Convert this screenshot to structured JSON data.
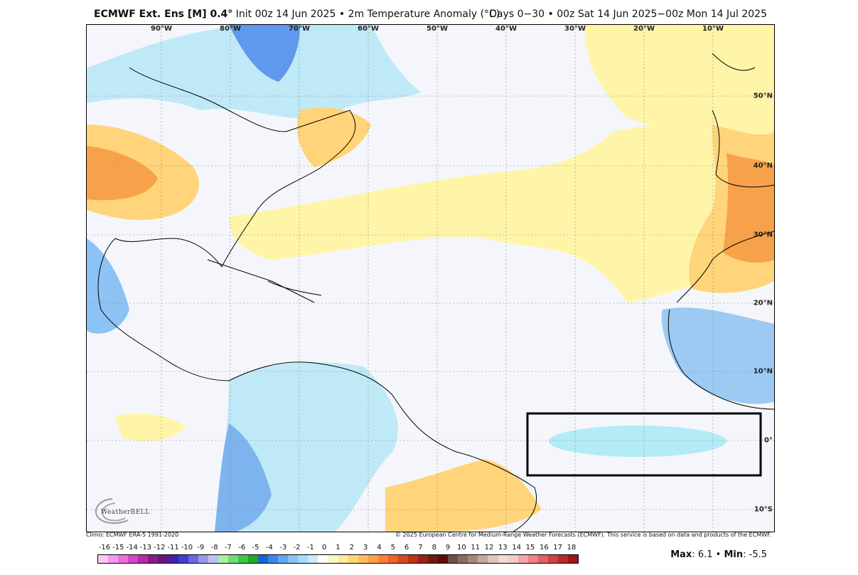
{
  "header": {
    "model": "ECMWF Ext. Ens [M] 0.4",
    "deg": "°",
    "init": "Init 00z 14 Jun 2025",
    "bullet": "•",
    "field": "2m Temperature Anomaly (°C)",
    "period": "Days 0−30",
    "valid": "00z Sat 14 Jun 2025−00z Mon 14 Jul 2025"
  },
  "map": {
    "lon_labels": [
      "90°W",
      "80°W",
      "70°W",
      "60°W",
      "50°W",
      "40°W",
      "30°W",
      "20°W",
      "10°W"
    ],
    "lat_labels": [
      "50°N",
      "40°N",
      "30°N",
      "20°N",
      "10°N",
      "0°",
      "10°S"
    ],
    "highlight_box": "region of interest"
  },
  "footer": {
    "climo": "Climo: ECMWF ERA-5 1991-2020",
    "copyright": "© 2025 European Centre for Medium-Range Weather Forecasts (ECMWF). This service is based on data and products of the ECMWF.",
    "logo": "WeatherBELL"
  },
  "colorbar": {
    "labels": [
      "-16",
      "-15",
      "-14",
      "-13",
      "-12",
      "-11",
      "-10",
      "-9",
      "-8",
      "-7",
      "-6",
      "-5",
      "-4",
      "-3",
      "-2",
      "-1",
      "0",
      "1",
      "2",
      "3",
      "4",
      "5",
      "6",
      "7",
      "8",
      "9",
      "10",
      "11",
      "12",
      "13",
      "14",
      "15",
      "16",
      "17",
      "18"
    ],
    "colors": [
      "#fbc8f4",
      "#f59ae8",
      "#ea6fdb",
      "#d545c6",
      "#b22ca6",
      "#8b1c86",
      "#6a1480",
      "#4b1fa8",
      "#3e3ed0",
      "#6a68e0",
      "#9a96ec",
      "#c2c0f2",
      "#a7f0a4",
      "#74db70",
      "#44c248",
      "#1fa82a",
      "#1a64d0",
      "#3a86e6",
      "#62a6f0",
      "#8cc2f4",
      "#aad8f6",
      "#c8ecf6",
      "#ffffff",
      "#fff7c2",
      "#ffe89a",
      "#ffd57a",
      "#ffbd5c",
      "#ffa046",
      "#f98236",
      "#ec642a",
      "#d64a22",
      "#b8341c",
      "#962418",
      "#741812",
      "#57100c",
      "#6e4f45",
      "#8c6a5e",
      "#a8877a",
      "#c2a79b",
      "#dcc7bd",
      "#efdcd5",
      "#f6cac8",
      "#f2a7a6",
      "#e98584",
      "#dc6262",
      "#cc4444",
      "#b72a2a",
      "#9e1616"
    ]
  },
  "stats": {
    "max_label": "Max",
    "max_value": ": 6.1",
    "sep": " • ",
    "min_label": "Min",
    "min_value": ": -5.5"
  }
}
